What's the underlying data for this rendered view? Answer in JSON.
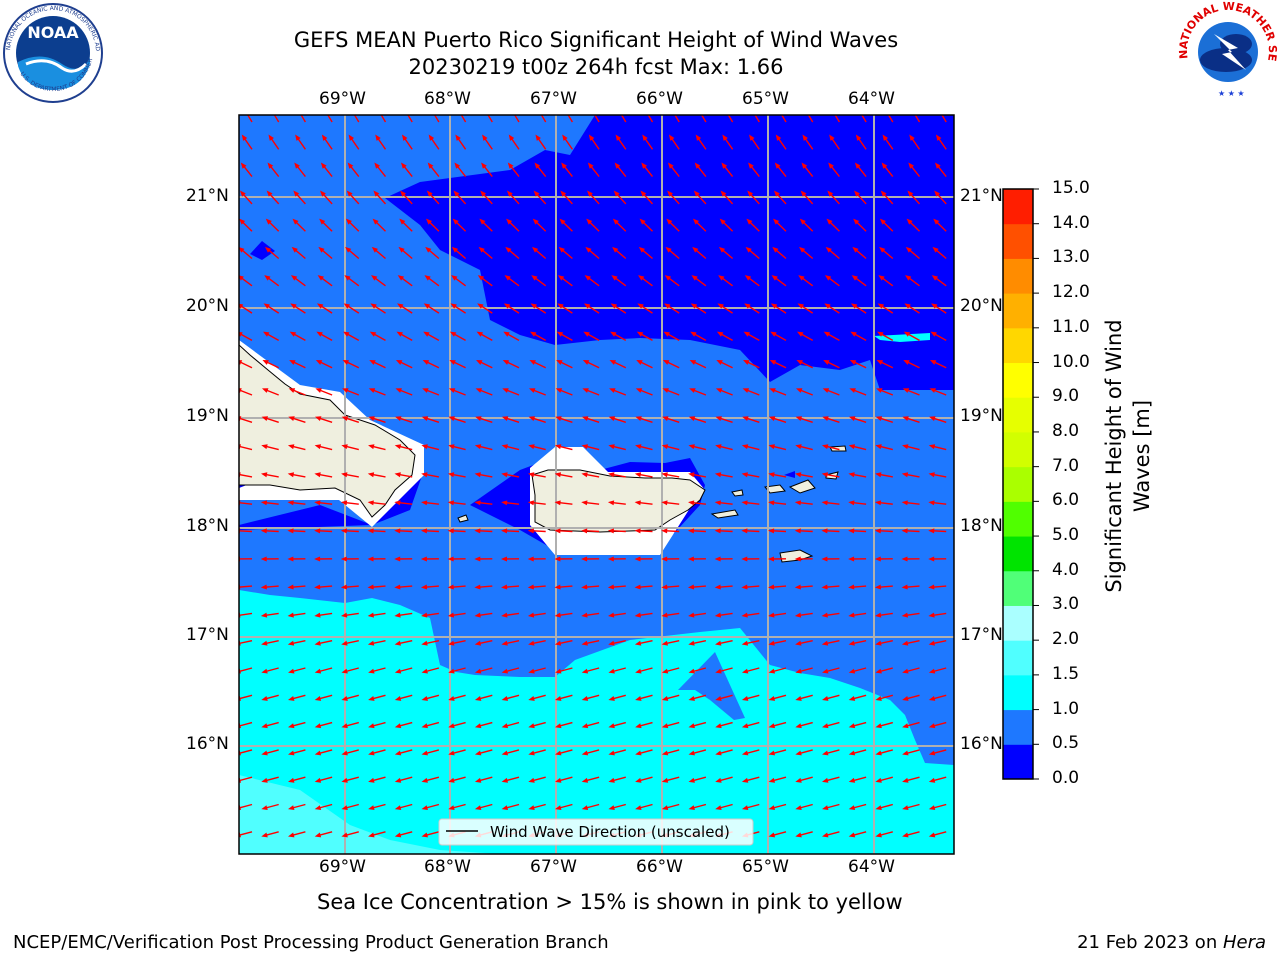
{
  "title": {
    "line1": "GEFS MEAN Puerto Rico Significant Height of Wind Waves",
    "line2": "20230219 t00z 264h fcst   Max: 1.66"
  },
  "logos": {
    "noaa_text": "NOAA",
    "noaa_ring": "NATIONAL OCEANIC AND ATMOSPHERIC ADMINISTRATION",
    "noaa_ring_bottom": "U.S. DEPARTMENT OF COMMERCE",
    "nws_ring": "NATIONAL WEATHER SERVICE"
  },
  "map": {
    "lon_labels": [
      "69°W",
      "68°W",
      "67°W",
      "66°W",
      "65°W",
      "64°W"
    ],
    "lat_labels": [
      "21°N",
      "20°N",
      "19°N",
      "18°N",
      "17°N",
      "16°N"
    ],
    "legend": "Wind Wave Direction (unscaled)",
    "vector_color": "#ff0000",
    "land_color": "#efefdf"
  },
  "colorbar": {
    "label_line1": "Significant Height of Wind",
    "label_line2": "Waves [m]",
    "ticks": [
      "0.0",
      "0.5",
      "1.0",
      "1.5",
      "2.0",
      "3.0",
      "4.0",
      "5.0",
      "6.0",
      "7.0",
      "8.0",
      "9.0",
      "10.0",
      "11.0",
      "12.0",
      "13.0",
      "14.0",
      "15.0"
    ],
    "colors": [
      "#0000ff",
      "#1e78ff",
      "#00ffff",
      "#50ffff",
      "#aaffff",
      "#50ff78",
      "#00e400",
      "#50ff00",
      "#aaff00",
      "#d2ff00",
      "#e6ff00",
      "#ffff00",
      "#ffd700",
      "#ffb000",
      "#ff8c00",
      "#ff5000",
      "#ff1e00"
    ]
  },
  "note": "Sea Ice Concentration > 15% is shown in pink to yellow",
  "footer": {
    "left": "NCEP/EMC/Verification Post Processing Product Generation Branch",
    "date": "21 Feb 2023 on ",
    "host": "Hera"
  }
}
